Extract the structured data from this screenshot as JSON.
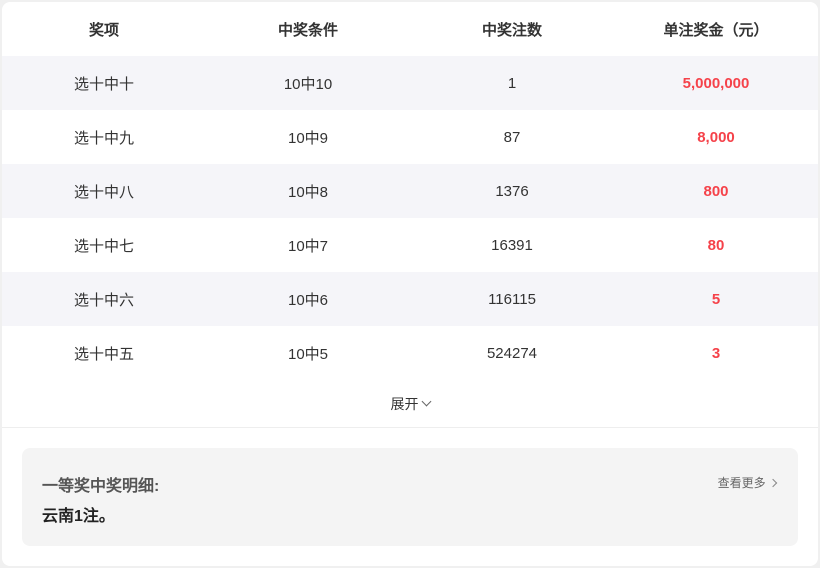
{
  "table": {
    "headers": [
      "奖项",
      "中奖条件",
      "中奖注数",
      "单注奖金（元）"
    ],
    "rows": [
      {
        "name": "选十中十",
        "condition": "10中10",
        "count": "1",
        "prize": "5,000,000"
      },
      {
        "name": "选十中九",
        "condition": "10中9",
        "count": "87",
        "prize": "8,000"
      },
      {
        "name": "选十中八",
        "condition": "10中8",
        "count": "1376",
        "prize": "800"
      },
      {
        "name": "选十中七",
        "condition": "10中7",
        "count": "16391",
        "prize": "80"
      },
      {
        "name": "选十中六",
        "condition": "10中6",
        "count": "116115",
        "prize": "5"
      },
      {
        "name": "选十中五",
        "condition": "10中5",
        "count": "524274",
        "prize": "3"
      }
    ]
  },
  "expand_label": "展开",
  "detail": {
    "title": "一等奖中奖明细:",
    "body": "云南1注。",
    "more_label": "查看更多"
  },
  "colors": {
    "prize": "#f5424a",
    "alt_row": "#f5f5f9"
  }
}
